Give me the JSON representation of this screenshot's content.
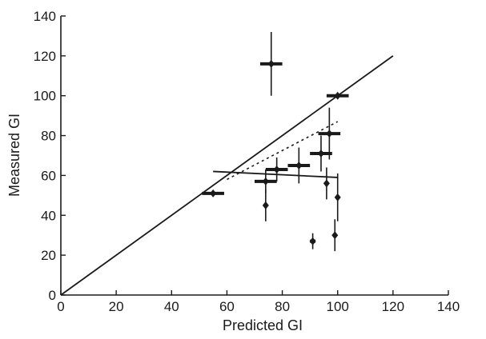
{
  "chart_data": {
    "type": "scatter",
    "title": "",
    "xlabel": "Predicted GI",
    "ylabel": "Measured GI",
    "xlim": [
      0,
      140
    ],
    "ylim": [
      0,
      140
    ],
    "x_ticks": [
      "0",
      "20",
      "40",
      "60",
      "80",
      "100",
      "120",
      "140"
    ],
    "y_ticks": [
      "0",
      "20",
      "40",
      "60",
      "80",
      "100",
      "120",
      "140"
    ],
    "grid": false,
    "legend": "none",
    "colors": {
      "ink": "#1a1a1a",
      "background": "#ffffff"
    },
    "points": [
      {
        "x": 55,
        "y": 51,
        "xerr": 4,
        "yerr_low": 1,
        "yerr_high": 1
      },
      {
        "x": 74,
        "y": 57,
        "xerr": 4,
        "yerr_low": 6,
        "yerr_high": 6
      },
      {
        "x": 74,
        "y": 45,
        "xerr": 0,
        "yerr_low": 8,
        "yerr_high": 8
      },
      {
        "x": 76,
        "y": 116,
        "xerr": 4,
        "yerr_low": 16,
        "yerr_high": 16
      },
      {
        "x": 78,
        "y": 63,
        "xerr": 4,
        "yerr_low": 6,
        "yerr_high": 6
      },
      {
        "x": 86,
        "y": 65,
        "xerr": 4,
        "yerr_low": 9,
        "yerr_high": 9
      },
      {
        "x": 91,
        "y": 27,
        "xerr": 1,
        "yerr_low": 4,
        "yerr_high": 4
      },
      {
        "x": 94,
        "y": 71,
        "xerr": 4,
        "yerr_low": 9,
        "yerr_high": 9
      },
      {
        "x": 96,
        "y": 56,
        "xerr": 0,
        "yerr_low": 8,
        "yerr_high": 8
      },
      {
        "x": 97,
        "y": 81,
        "xerr": 4,
        "yerr_low": 13,
        "yerr_high": 13
      },
      {
        "x": 99,
        "y": 30,
        "xerr": 0,
        "yerr_low": 8,
        "yerr_high": 8
      },
      {
        "x": 100,
        "y": 100,
        "xerr": 4,
        "yerr_low": 1,
        "yerr_high": 1
      },
      {
        "x": 100,
        "y": 49,
        "xerr": 0,
        "yerr_low": 12,
        "yerr_high": 12
      }
    ],
    "lines": [
      {
        "style": "solid",
        "x": [
          0,
          120
        ],
        "y": [
          0,
          120
        ]
      },
      {
        "style": "dotted",
        "x": [
          60,
          100
        ],
        "y": [
          58,
          87
        ]
      },
      {
        "style": "solid",
        "x": [
          55,
          100
        ],
        "y": [
          62,
          59
        ]
      }
    ]
  }
}
